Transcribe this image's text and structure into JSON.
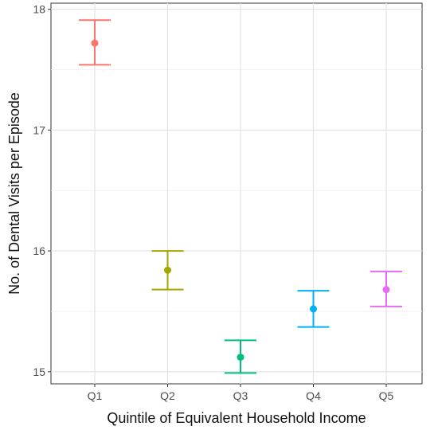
{
  "chart_data": {
    "type": "scatter",
    "title": "",
    "xlabel": "Quintile of Equivalent Household Income",
    "ylabel": "No. of Dental Visits per Episode",
    "categories": [
      "Q1",
      "Q2",
      "Q3",
      "Q4",
      "Q5"
    ],
    "values": [
      17.72,
      15.84,
      15.12,
      15.52,
      15.68
    ],
    "error_low": [
      17.54,
      15.68,
      14.99,
      15.37,
      15.54
    ],
    "error_high": [
      17.91,
      16.0,
      15.26,
      15.67,
      15.83
    ],
    "colors": [
      "#F8766D",
      "#A3A500",
      "#00BF7D",
      "#00B0F6",
      "#E76BF3"
    ],
    "ylim": [
      14.9,
      18.05
    ],
    "yticks": [
      15,
      16,
      17,
      18
    ],
    "grid": true,
    "legend": "none"
  },
  "axes": {
    "x_title": "Quintile of Equivalent Household Income",
    "y_title": "No. of Dental Visits per Episode"
  }
}
